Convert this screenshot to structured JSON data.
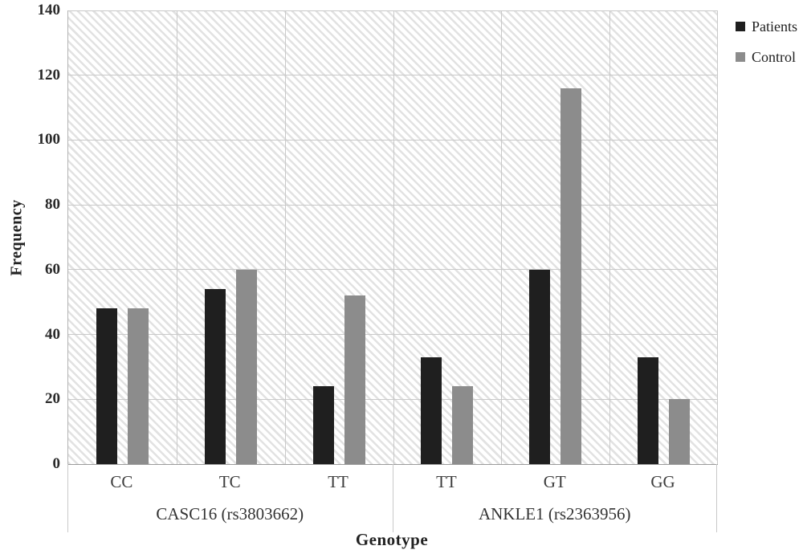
{
  "chart_data": {
    "type": "bar",
    "title": "",
    "xlabel": "Genotype",
    "ylabel": "Frequency",
    "ylim": [
      0,
      140
    ],
    "yticks": [
      0,
      20,
      40,
      60,
      80,
      100,
      120,
      140
    ],
    "grid": true,
    "plot_background": "hatched-diagonal",
    "legend_position": "top-right",
    "group_axis": [
      {
        "name": "CASC16 (rs3803662)",
        "categories": [
          "CC",
          "TC",
          "TT"
        ]
      },
      {
        "name": "ANKLE1 (rs2363956)",
        "categories": [
          "TT",
          "GT",
          "GG"
        ]
      }
    ],
    "categories": [
      "CC",
      "TC",
      "TT",
      "TT",
      "GT",
      "GG"
    ],
    "series": [
      {
        "name": "Patients",
        "color": "#1f1f1f",
        "values": [
          48,
          54,
          24,
          33,
          60,
          33
        ]
      },
      {
        "name": "Control",
        "color": "#8c8c8c",
        "values": [
          48,
          60,
          52,
          24,
          116,
          20
        ]
      }
    ],
    "colors": {
      "gridline": "#c9c9c9",
      "axis_line": "#9b9b9b",
      "hatch_line": "#e2e2e2"
    }
  }
}
